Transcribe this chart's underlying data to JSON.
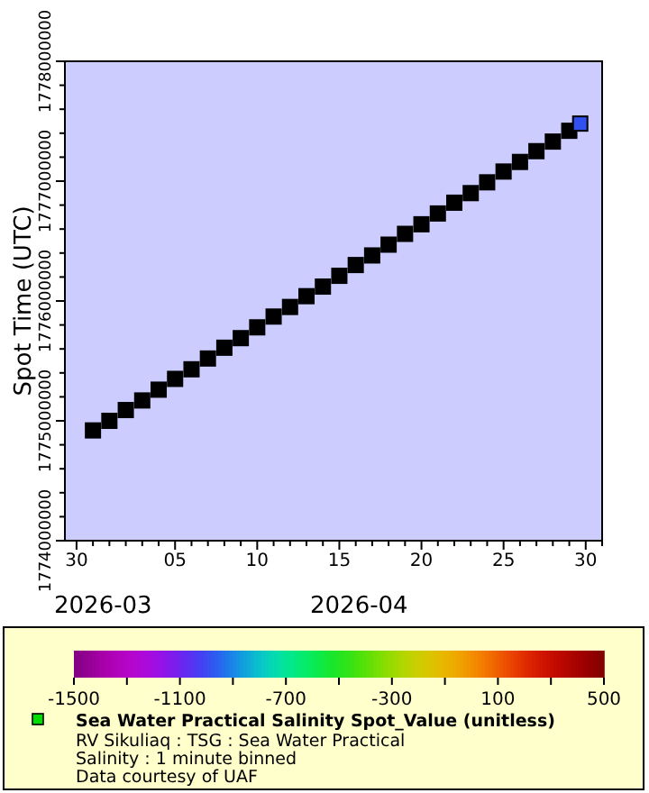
{
  "chart_data": {
    "type": "scatter",
    "ylabel": "Spot Time (UTC)",
    "clabel": "Sea Water Practical Salinity Spot_Value (unitless)",
    "annotations": [
      "2026-03",
      "2026-04",
      "RV Sikuliaq : TSG : Sea Water Practical",
      "Salinity : 1 minute binned",
      "Data courtesy of UAF"
    ],
    "xlim": [
      "2026-03-29T07:00",
      "2026-05-01T00:00"
    ],
    "xticks": [
      {
        "value": "2026-03-30",
        "label": "30"
      },
      {
        "value": "2026-03-31",
        "label": null
      },
      {
        "value": "2026-04-01",
        "label": null
      },
      {
        "value": "2026-04-02",
        "label": null
      },
      {
        "value": "2026-04-03",
        "label": null
      },
      {
        "value": "2026-04-04",
        "label": null
      },
      {
        "value": "2026-04-05",
        "label": "05"
      },
      {
        "value": "2026-04-06",
        "label": null
      },
      {
        "value": "2026-04-07",
        "label": null
      },
      {
        "value": "2026-04-08",
        "label": null
      },
      {
        "value": "2026-04-09",
        "label": null
      },
      {
        "value": "2026-04-10",
        "label": "10"
      },
      {
        "value": "2026-04-11",
        "label": null
      },
      {
        "value": "2026-04-12",
        "label": null
      },
      {
        "value": "2026-04-13",
        "label": null
      },
      {
        "value": "2026-04-14",
        "label": null
      },
      {
        "value": "2026-04-15",
        "label": "15"
      },
      {
        "value": "2026-04-16",
        "label": null
      },
      {
        "value": "2026-04-17",
        "label": null
      },
      {
        "value": "2026-04-18",
        "label": null
      },
      {
        "value": "2026-04-19",
        "label": null
      },
      {
        "value": "2026-04-20",
        "label": "20"
      },
      {
        "value": "2026-04-21",
        "label": null
      },
      {
        "value": "2026-04-22",
        "label": null
      },
      {
        "value": "2026-04-23",
        "label": null
      },
      {
        "value": "2026-04-24",
        "label": null
      },
      {
        "value": "2026-04-25",
        "label": "25"
      },
      {
        "value": "2026-04-26",
        "label": null
      },
      {
        "value": "2026-04-27",
        "label": null
      },
      {
        "value": "2026-04-28",
        "label": null
      },
      {
        "value": "2026-04-29",
        "label": null
      },
      {
        "value": "2026-04-30",
        "label": "30"
      },
      {
        "value": "2026-05-01",
        "label": null
      }
    ],
    "ylim": [
      1774000000,
      1778000000
    ],
    "yticks": [
      1774000000,
      {
        "value": 1774200000,
        "label": null
      },
      {
        "value": 1774400000,
        "label": null
      },
      {
        "value": 1774600000,
        "label": null
      },
      {
        "value": 1774800000,
        "label": null
      },
      1775000000,
      {
        "value": 1775200000,
        "label": null
      },
      {
        "value": 1775400000,
        "label": null
      },
      {
        "value": 1775600000,
        "label": null
      },
      {
        "value": 1775800000,
        "label": null
      },
      1776000000,
      {
        "value": 1776200000,
        "label": null
      },
      {
        "value": 1776400000,
        "label": null
      },
      {
        "value": 1776600000,
        "label": null
      },
      {
        "value": 1776800000,
        "label": null
      },
      1777000000,
      {
        "value": 1777200000,
        "label": null
      },
      {
        "value": 1777400000,
        "label": null
      },
      {
        "value": 1777600000,
        "label": null
      },
      {
        "value": 1777800000,
        "label": null
      },
      1778000000
    ],
    "clim": [
      -1500,
      500
    ],
    "cticks": [
      -1500,
      {
        "value": -1300,
        "label": null
      },
      -1100,
      {
        "value": -900,
        "label": null
      },
      -700,
      {
        "value": -500,
        "label": null
      },
      -300,
      {
        "value": -100,
        "label": null
      },
      100,
      {
        "value": 300,
        "label": null
      },
      500
    ],
    "marker": "square",
    "grid": false,
    "series": [
      {
        "color": "#000000",
        "x": [
          "2026-03-31",
          "2026-04-01",
          "2026-04-02",
          "2026-04-03",
          "2026-04-04",
          "2026-04-05",
          "2026-04-06",
          "2026-04-07",
          "2026-04-08",
          "2026-04-09",
          "2026-04-10",
          "2026-04-11",
          "2026-04-12",
          "2026-04-13",
          "2026-04-14",
          "2026-04-15",
          "2026-04-16",
          "2026-04-17",
          "2026-04-18",
          "2026-04-19",
          "2026-04-20",
          "2026-04-21",
          "2026-04-22",
          "2026-04-23",
          "2026-04-24",
          "2026-04-25",
          "2026-04-26",
          "2026-04-27",
          "2026-04-28",
          "2026-04-29"
        ],
        "values": [
          1774920000,
          1775000000,
          1775090000,
          1775170000,
          1775260000,
          1775350000,
          1775430000,
          1775520000,
          1775610000,
          1775690000,
          1775780000,
          1775870000,
          1775950000,
          1776040000,
          1776120000,
          1776210000,
          1776300000,
          1776380000,
          1776470000,
          1776560000,
          1776640000,
          1776730000,
          1776820000,
          1776900000,
          1776990000,
          1777080000,
          1777160000,
          1777250000,
          1777330000,
          1777420000
        ]
      },
      {
        "color": "#3050f0",
        "x": [
          "2026-04-29T16:00"
        ],
        "values": [
          1777480000
        ]
      }
    ]
  }
}
